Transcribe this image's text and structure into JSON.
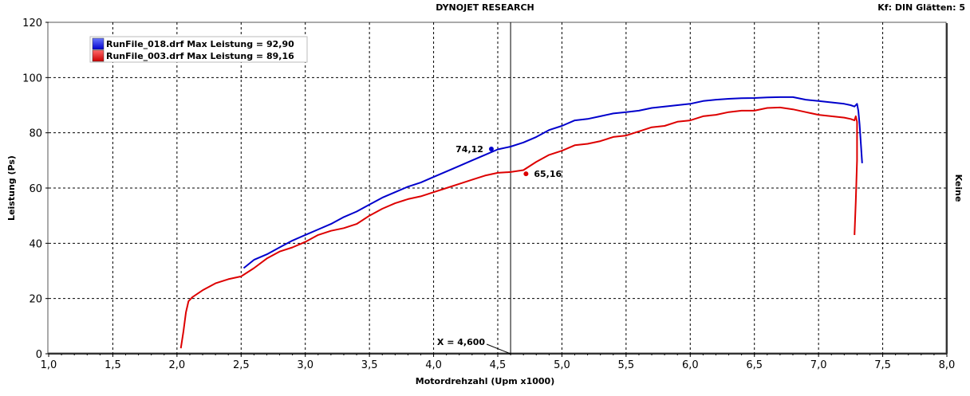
{
  "header": {
    "title": "DYNOJET RESEARCH",
    "right_info": "Kf: DIN  Glätten: 5"
  },
  "colors": {
    "series_blue": "#0000cc",
    "series_red": "#dd0000",
    "grid": "#000000",
    "frame": "#555555"
  },
  "chart_data": {
    "type": "line",
    "xlabel": "Motordrehzahl (Upm x1000)",
    "ylabel": "Leistung (Ps)",
    "right_label": "Keine",
    "xlim": [
      1.0,
      8.0
    ],
    "ylim": [
      0,
      120
    ],
    "x_ticks": [
      "1,0",
      "1,5",
      "2,0",
      "2,5",
      "3,0",
      "3,5",
      "4,0",
      "4,5",
      "5,0",
      "5,5",
      "6,0",
      "6,5",
      "7,0",
      "7,5",
      "8,0"
    ],
    "y_ticks": [
      "0",
      "20",
      "40",
      "60",
      "80",
      "100",
      "120"
    ],
    "grid": true,
    "legend_position": "top-left",
    "cursor": {
      "x": 4.6,
      "label": "X = 4,600"
    },
    "series": [
      {
        "name": "RunFile_018.drf Max Leistung = 92,90",
        "color": "#0000cc",
        "marker": {
          "x": 4.45,
          "y": 74.12,
          "label": "74,12"
        },
        "points": [
          [
            2.52,
            31
          ],
          [
            2.6,
            34
          ],
          [
            2.7,
            36
          ],
          [
            2.8,
            38.5
          ],
          [
            2.9,
            41
          ],
          [
            3.0,
            43
          ],
          [
            3.1,
            45
          ],
          [
            3.2,
            47
          ],
          [
            3.3,
            49.5
          ],
          [
            3.4,
            51.5
          ],
          [
            3.5,
            54
          ],
          [
            3.6,
            56.5
          ],
          [
            3.7,
            58.5
          ],
          [
            3.8,
            60.5
          ],
          [
            3.9,
            62
          ],
          [
            4.0,
            64
          ],
          [
            4.1,
            66
          ],
          [
            4.2,
            68
          ],
          [
            4.3,
            70
          ],
          [
            4.4,
            72
          ],
          [
            4.5,
            74
          ],
          [
            4.6,
            75
          ],
          [
            4.7,
            76.5
          ],
          [
            4.8,
            78.5
          ],
          [
            4.9,
            81
          ],
          [
            5.0,
            82.5
          ],
          [
            5.1,
            84.5
          ],
          [
            5.2,
            85
          ],
          [
            5.3,
            86
          ],
          [
            5.4,
            87
          ],
          [
            5.5,
            87.5
          ],
          [
            5.6,
            88
          ],
          [
            5.7,
            89
          ],
          [
            5.8,
            89.5
          ],
          [
            5.9,
            90
          ],
          [
            6.0,
            90.5
          ],
          [
            6.1,
            91.5
          ],
          [
            6.2,
            92
          ],
          [
            6.3,
            92.3
          ],
          [
            6.4,
            92.5
          ],
          [
            6.5,
            92.6
          ],
          [
            6.6,
            92.8
          ],
          [
            6.7,
            92.9
          ],
          [
            6.8,
            92.9
          ],
          [
            6.9,
            92
          ],
          [
            7.0,
            91.5
          ],
          [
            7.1,
            91
          ],
          [
            7.2,
            90.5
          ],
          [
            7.25,
            90
          ],
          [
            7.28,
            89.5
          ],
          [
            7.3,
            90.5
          ],
          [
            7.31,
            88
          ],
          [
            7.32,
            83
          ],
          [
            7.33,
            76
          ],
          [
            7.34,
            69
          ]
        ]
      },
      {
        "name": "RunFile_003.drf Max Leistung = 89,16",
        "color": "#dd0000",
        "marker": {
          "x": 4.72,
          "y": 65.16,
          "label": "65,16"
        },
        "points": [
          [
            2.03,
            2
          ],
          [
            2.05,
            8
          ],
          [
            2.07,
            15
          ],
          [
            2.09,
            19
          ],
          [
            2.12,
            20.5
          ],
          [
            2.2,
            23
          ],
          [
            2.3,
            25.5
          ],
          [
            2.4,
            27
          ],
          [
            2.5,
            28
          ],
          [
            2.6,
            31
          ],
          [
            2.7,
            34.5
          ],
          [
            2.8,
            37
          ],
          [
            2.9,
            38.5
          ],
          [
            3.0,
            40.5
          ],
          [
            3.1,
            43
          ],
          [
            3.2,
            44.5
          ],
          [
            3.3,
            45.5
          ],
          [
            3.4,
            47
          ],
          [
            3.5,
            50
          ],
          [
            3.6,
            52.5
          ],
          [
            3.7,
            54.5
          ],
          [
            3.8,
            56
          ],
          [
            3.9,
            57
          ],
          [
            4.0,
            58.5
          ],
          [
            4.1,
            60
          ],
          [
            4.2,
            61.5
          ],
          [
            4.3,
            63
          ],
          [
            4.4,
            64.5
          ],
          [
            4.5,
            65.5
          ],
          [
            4.6,
            65.8
          ],
          [
            4.7,
            66.5
          ],
          [
            4.8,
            69.5
          ],
          [
            4.9,
            72
          ],
          [
            5.0,
            73.5
          ],
          [
            5.1,
            75.5
          ],
          [
            5.2,
            76
          ],
          [
            5.3,
            77
          ],
          [
            5.4,
            78.5
          ],
          [
            5.5,
            79
          ],
          [
            5.6,
            80.5
          ],
          [
            5.7,
            82
          ],
          [
            5.8,
            82.5
          ],
          [
            5.9,
            84
          ],
          [
            6.0,
            84.5
          ],
          [
            6.1,
            86
          ],
          [
            6.2,
            86.5
          ],
          [
            6.3,
            87.5
          ],
          [
            6.4,
            88
          ],
          [
            6.5,
            88
          ],
          [
            6.6,
            89
          ],
          [
            6.7,
            89.16
          ],
          [
            6.8,
            88.5
          ],
          [
            6.9,
            87.5
          ],
          [
            7.0,
            86.5
          ],
          [
            7.1,
            86
          ],
          [
            7.2,
            85.5
          ],
          [
            7.25,
            85
          ],
          [
            7.28,
            84.5
          ],
          [
            7.29,
            86
          ],
          [
            7.3,
            84
          ],
          [
            7.3,
            70
          ],
          [
            7.29,
            55
          ],
          [
            7.28,
            43
          ]
        ]
      }
    ]
  }
}
